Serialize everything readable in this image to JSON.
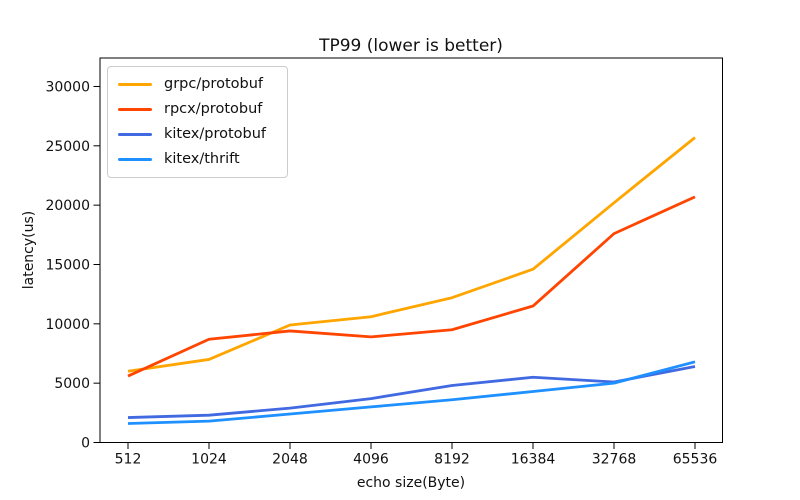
{
  "chart_data": {
    "type": "line",
    "title": "TP99 (lower is better)",
    "xlabel": "echo size(Byte)",
    "ylabel": "latency(us)",
    "categories": [
      "512",
      "1024",
      "2048",
      "4096",
      "8192",
      "16384",
      "32768",
      "65536"
    ],
    "yticks": [
      "0",
      "5000",
      "10000",
      "15000",
      "20000",
      "25000",
      "30000"
    ],
    "ytick_values": [
      0,
      5000,
      10000,
      15000,
      20000,
      25000,
      30000
    ],
    "ylim": [
      0,
      32400
    ],
    "grid": false,
    "legend_position": "upper left",
    "background_color": "#ffffff",
    "axis_color": "#000000",
    "series": [
      {
        "name": "grpc/protobuf",
        "color": "#FFA500",
        "values": [
          6000,
          7000,
          9900,
          10600,
          12200,
          14600,
          20200,
          25700
        ]
      },
      {
        "name": "rpcx/protobuf",
        "color": "#FF4500",
        "values": [
          5600,
          8700,
          9400,
          8900,
          9500,
          11500,
          17600,
          20700
        ]
      },
      {
        "name": "kitex/protobuf",
        "color": "#4169E1",
        "values": [
          2100,
          2300,
          2900,
          3700,
          4800,
          5500,
          5100,
          6400
        ]
      },
      {
        "name": "kitex/thrift",
        "color": "#1E90FF",
        "values": [
          1600,
          1800,
          2400,
          3000,
          3600,
          4300,
          5000,
          6800
        ]
      }
    ]
  }
}
